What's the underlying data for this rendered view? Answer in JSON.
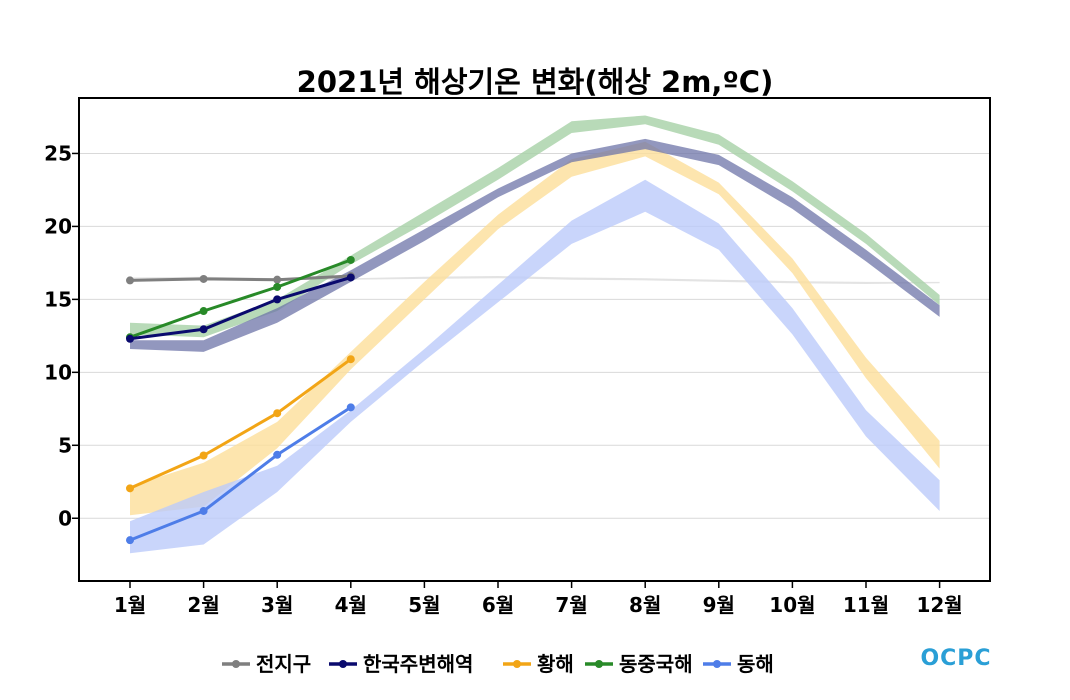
{
  "chart_data": {
    "type": "line",
    "title": "2021년 해상기온 변화(해상 2m,ºC)",
    "xlabel": "",
    "ylabel": "",
    "categories": [
      "1월",
      "2월",
      "3월",
      "4월",
      "5월",
      "6월",
      "7월",
      "8월",
      "9월",
      "10월",
      "11월",
      "12월"
    ],
    "ylim": [
      -4.3,
      28.8
    ],
    "yticks": [
      0,
      5,
      10,
      15,
      20,
      25
    ],
    "grid": "horizontal",
    "legend_position": "bottom",
    "series": [
      {
        "name": "전지구",
        "color": "#7f7f7f",
        "band_color": "#dcdcdc",
        "values": [
          16.3,
          16.4,
          16.35,
          16.6,
          null,
          null,
          null,
          null,
          null,
          null,
          null,
          null
        ],
        "band_low": [
          16.4,
          16.45,
          16.35,
          16.35,
          16.4,
          16.45,
          16.35,
          16.3,
          16.2,
          16.1,
          16.05,
          16.1
        ],
        "band_high": [
          16.5,
          16.55,
          16.45,
          16.45,
          16.55,
          16.6,
          16.5,
          16.45,
          16.35,
          16.25,
          16.2,
          16.2
        ]
      },
      {
        "name": "한국주변해역",
        "color": "#0a0a6e",
        "band_color": "#6e74a8",
        "values": [
          12.3,
          12.95,
          15.0,
          16.5,
          null,
          null,
          null,
          null,
          null,
          null,
          null,
          null
        ],
        "band_low": [
          11.6,
          11.4,
          13.4,
          16.2,
          19.0,
          22.0,
          24.4,
          25.3,
          24.2,
          21.2,
          17.6,
          13.8
        ],
        "band_high": [
          12.2,
          12.2,
          14.4,
          17.0,
          19.8,
          22.6,
          25.0,
          26.0,
          24.9,
          22.0,
          18.4,
          14.6
        ]
      },
      {
        "name": "황해",
        "color": "#f2a516",
        "band_color": "#fddf9a",
        "values": [
          2.05,
          4.3,
          7.2,
          10.9,
          null,
          null,
          null,
          null,
          null,
          null,
          null,
          null
        ],
        "band_low": [
          0.2,
          0.8,
          4.8,
          10.2,
          15.0,
          19.8,
          23.4,
          24.8,
          22.2,
          16.8,
          9.6,
          3.4
        ],
        "band_high": [
          2.2,
          3.8,
          6.6,
          11.4,
          16.2,
          20.8,
          24.6,
          25.8,
          23.0,
          17.8,
          11.0,
          5.3
        ]
      },
      {
        "name": "동중국해",
        "color": "#288a28",
        "band_color": "#a6d1a6",
        "values": [
          12.4,
          14.2,
          15.85,
          17.7,
          null,
          null,
          null,
          null,
          null,
          null,
          null,
          null
        ],
        "band_low": [
          12.6,
          12.4,
          14.2,
          17.4,
          20.2,
          23.2,
          26.4,
          27.0,
          25.6,
          22.4,
          18.8,
          14.6
        ],
        "band_high": [
          13.4,
          13.2,
          15.0,
          18.0,
          21.0,
          24.0,
          27.2,
          27.6,
          26.3,
          23.1,
          19.5,
          15.3
        ]
      },
      {
        "name": "동해",
        "color": "#4e7de8",
        "band_color": "#bccbfa",
        "values": [
          -1.5,
          0.5,
          4.35,
          7.6,
          null,
          null,
          null,
          null,
          null,
          null,
          null,
          null
        ],
        "band_low": [
          -2.4,
          -1.8,
          1.8,
          6.6,
          10.8,
          14.8,
          18.8,
          21.0,
          18.4,
          12.6,
          5.6,
          0.5
        ],
        "band_high": [
          -0.2,
          1.8,
          3.6,
          7.4,
          11.6,
          16.0,
          20.4,
          23.2,
          20.2,
          14.4,
          7.4,
          2.6
        ]
      }
    ]
  },
  "logo": {
    "text": "OCPC",
    "color": "#2a9fd6"
  }
}
